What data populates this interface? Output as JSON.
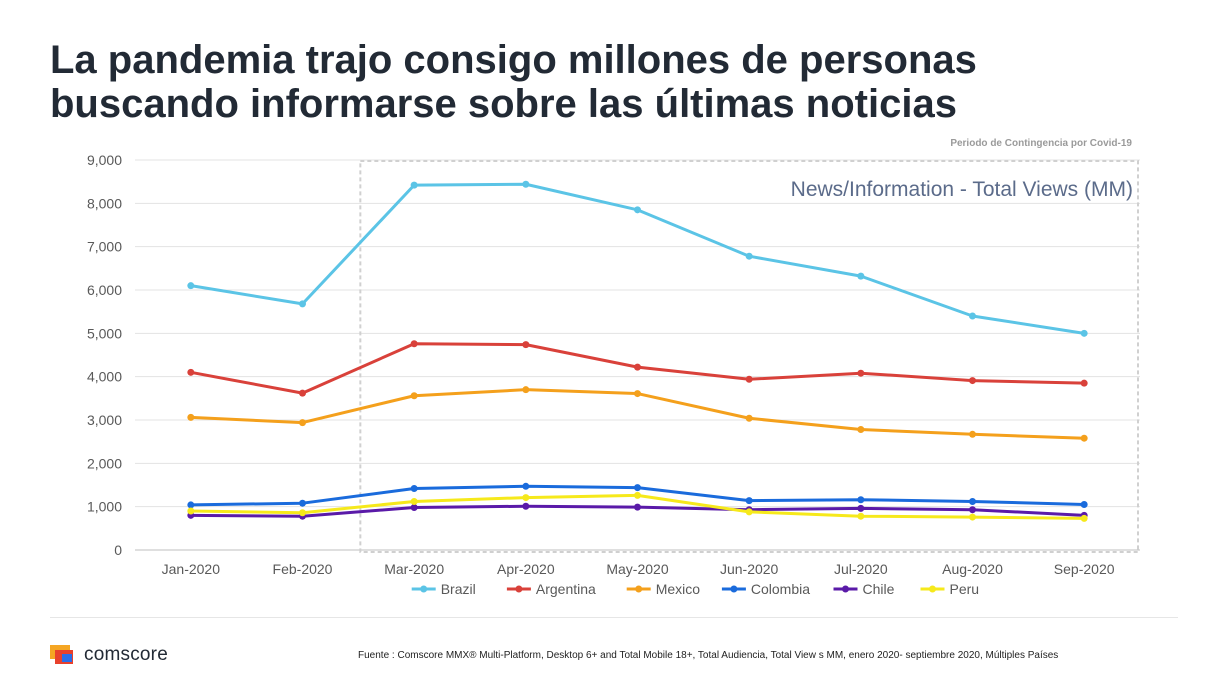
{
  "title_lines": [
    "La pandemia trajo consigo millones de personas",
    "buscando informarse sobre las últimas noticias"
  ],
  "contingency_label": "Periodo de Contingencia por Covid-19",
  "brand": {
    "name": "comscore",
    "icon": "comscore-logo-icon"
  },
  "source": "Fuente : Comscore MMX® Multi-Platform, Desktop 6+ and Total Mobile 18+, Total Audiencia, Total View s MM, enero 2020- septiembre 2020, Múltiples Países",
  "chart_data": {
    "type": "line",
    "title": "News/Information - Total Views (MM)",
    "categories": [
      "Jan-2020",
      "Feb-2020",
      "Mar-2020",
      "Apr-2020",
      "May-2020",
      "Jun-2020",
      "Jul-2020",
      "Aug-2020",
      "Sep-2020"
    ],
    "ylim": [
      0,
      9000
    ],
    "yticks": [
      0,
      1000,
      2000,
      3000,
      4000,
      5000,
      6000,
      7000,
      8000,
      9000
    ],
    "ytick_labels": [
      "0",
      "1,000",
      "2,000",
      "3,000",
      "4,000",
      "5,000",
      "6,000",
      "7,000",
      "8,000",
      "9,000"
    ],
    "grid": true,
    "legend_position": "bottom",
    "highlight_range": {
      "from": "Mar-2020",
      "to": "Sep-2020",
      "label": "Periodo de Contingencia por Covid-19"
    },
    "series": [
      {
        "name": "Brazil",
        "color": "#5bc4e6",
        "values": [
          6100,
          5680,
          8420,
          8440,
          7850,
          6780,
          6320,
          5400,
          5000
        ]
      },
      {
        "name": "Argentina",
        "color": "#d9413a",
        "values": [
          4100,
          3620,
          4760,
          4740,
          4220,
          3940,
          4080,
          3910,
          3850
        ]
      },
      {
        "name": "Mexico",
        "color": "#f4a01c",
        "values": [
          3060,
          2940,
          3560,
          3700,
          3610,
          3040,
          2780,
          2670,
          2580
        ]
      },
      {
        "name": "Colombia",
        "color": "#1a6bdc",
        "values": [
          1040,
          1080,
          1420,
          1470,
          1440,
          1140,
          1160,
          1120,
          1050
        ]
      },
      {
        "name": "Chile",
        "color": "#5a1aa8",
        "values": [
          800,
          780,
          980,
          1010,
          990,
          930,
          960,
          930,
          800
        ]
      },
      {
        "name": "Peru",
        "color": "#f6e91b",
        "values": [
          900,
          860,
          1120,
          1210,
          1260,
          880,
          780,
          760,
          730
        ]
      }
    ]
  }
}
